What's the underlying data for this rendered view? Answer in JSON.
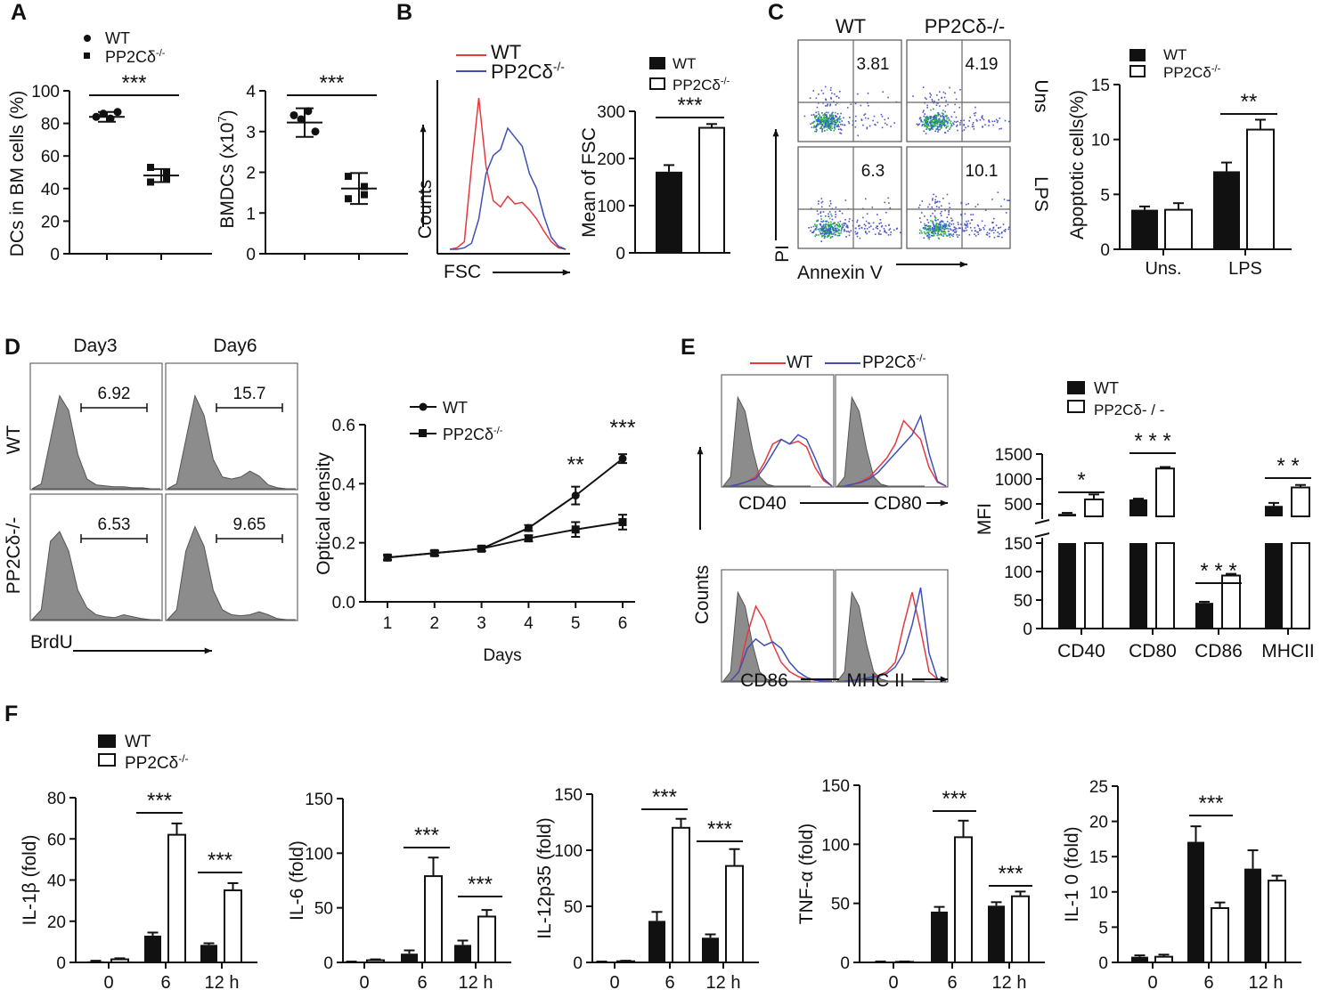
{
  "legend": {
    "wt": "WT",
    "ko": "PP2Cδ",
    "ko_sup": "-/-"
  },
  "colors": {
    "wt_line": "#e8383d",
    "ko_line": "#3f4fb5",
    "bar": "#000000",
    "shade": "#8c8c8c"
  },
  "panels": {
    "A": {
      "label": "A",
      "dcs": {
        "ylabel": "DCs in BM cells (%)",
        "yticks": [
          0,
          20,
          40,
          60,
          80,
          100
        ],
        "ylim": [
          0,
          100
        ],
        "wt_points": [
          84,
          86,
          83,
          87
        ],
        "ko_points": [
          44,
          50,
          53,
          46
        ],
        "wt_mean": 84,
        "wt_sd": 3,
        "ko_mean": 48,
        "ko_sd": 4,
        "sig": "***"
      },
      "bmdcs": {
        "ylabel": "BMDCs (x10",
        "ylabel_sup": "7",
        "ylabel_end": ")",
        "yticks": [
          0,
          1,
          2,
          3,
          4
        ],
        "ylim": [
          0,
          4
        ],
        "wt_points": [
          3.4,
          3.3,
          3.5,
          3.0
        ],
        "ko_points": [
          1.9,
          1.65,
          1.35,
          1.45
        ],
        "wt_mean": 3.22,
        "wt_sd": 0.35,
        "ko_mean": 1.6,
        "ko_sd": 0.38,
        "sig": "***"
      }
    },
    "B": {
      "label": "B",
      "hist_xlabel": "FSC",
      "hist_ylabel": "Counts",
      "bar": {
        "ylabel": "Mean of FSC",
        "yticks": [
          0,
          100,
          200,
          300
        ],
        "ylim": [
          0,
          300
        ],
        "wt": 172,
        "wt_err": 14,
        "ko": 265,
        "ko_err": 8,
        "sig": "***"
      }
    },
    "C": {
      "label": "C",
      "col_wt": "WT",
      "col_ko": "PP2Cδ-/-",
      "row1": "Uns",
      "row2": "LPS",
      "xlabel": "Annexin V",
      "ylabel": "PI",
      "q": [
        "3.81",
        "4.19",
        "6.3",
        "10.1"
      ],
      "bar": {
        "ylabel": "Apoptotic cells(%)",
        "yticks": [
          0,
          5,
          10,
          15
        ],
        "ylim": [
          0,
          15
        ],
        "categories": [
          "Uns.",
          "LPS"
        ],
        "wt": [
          3.6,
          7.1
        ],
        "wt_err": [
          0.3,
          0.8
        ],
        "ko": [
          3.6,
          10.9
        ],
        "ko_err": [
          0.6,
          0.9
        ],
        "sig": "**"
      }
    },
    "D": {
      "label": "D",
      "col1": "Day3",
      "col2": "Day6",
      "row1": "WT",
      "row2": "PP2Cδ-/-",
      "xlabel": "BrdU",
      "gates": [
        "6.92",
        "15.7",
        "6.53",
        "9.65"
      ]
    },
    "E": {
      "label": "E",
      "hist_ylabel": "Counts",
      "markers": [
        "CD40",
        "CD80",
        "CD86",
        "MHC II"
      ],
      "bar": {
        "ylabel": "MFI",
        "categories": [
          "CD40",
          "CD80",
          "CD86",
          "MHCII"
        ],
        "upper_ticks": [
          500,
          1000,
          1500
        ],
        "lower_ticks": [
          0,
          50,
          100,
          150
        ],
        "wt": [
          300,
          590,
          45,
          460
        ],
        "wt_err": [
          20,
          15,
          2,
          60
        ],
        "ko": [
          590,
          1210,
          93,
          830
        ],
        "ko_err": [
          100,
          30,
          3,
          50
        ],
        "sig": [
          "*",
          "* * *",
          "* * *",
          "* *"
        ],
        "legend_ko": "PP2Cδ- / -"
      }
    },
    "F": {
      "label": "F",
      "unit": "h",
      "categories": [
        "0",
        "6",
        "12 h"
      ]
    }
  },
  "chart_data": [
    {
      "type": "scatter",
      "title": "DCs in BM cells",
      "ylabel": "DCs in BM cells (%)",
      "ylim": [
        0,
        100
      ],
      "series": [
        {
          "name": "WT",
          "values": [
            84,
            86,
            83,
            87
          ]
        },
        {
          "name": "PP2Cδ-/-",
          "values": [
            44,
            50,
            53,
            46
          ]
        }
      ]
    },
    {
      "type": "scatter",
      "title": "BMDCs",
      "ylabel": "BMDCs (x10^7)",
      "ylim": [
        0,
        4
      ],
      "series": [
        {
          "name": "WT",
          "values": [
            3.4,
            3.3,
            3.5,
            3.0
          ]
        },
        {
          "name": "PP2Cδ-/-",
          "values": [
            1.9,
            1.65,
            1.35,
            1.45
          ]
        }
      ]
    },
    {
      "type": "bar",
      "ylabel": "Mean of FSC",
      "ylim": [
        0,
        300
      ],
      "categories": [
        "WT",
        "PP2Cδ-/-"
      ],
      "values": [
        172,
        265
      ]
    },
    {
      "type": "bar",
      "ylabel": "Apoptotic cells(%)",
      "ylim": [
        0,
        15
      ],
      "categories": [
        "Uns.",
        "LPS"
      ],
      "series": [
        {
          "name": "WT",
          "values": [
            3.6,
            7.1
          ]
        },
        {
          "name": "PP2Cδ-/-",
          "values": [
            3.6,
            10.9
          ]
        }
      ]
    },
    {
      "type": "line",
      "xlabel": "Days",
      "ylabel": "Optical density",
      "ylim": [
        0,
        0.6
      ],
      "x": [
        1,
        2,
        3,
        4,
        5,
        6
      ],
      "xticks": [
        1,
        2,
        3,
        4,
        5,
        6
      ],
      "yticks": [
        0.0,
        0.2,
        0.4,
        0.6
      ],
      "series": [
        {
          "name": "WT",
          "values": [
            0.15,
            0.165,
            0.18,
            0.25,
            0.36,
            0.485
          ],
          "err": [
            0.008,
            0.008,
            0.008,
            0.01,
            0.03,
            0.015
          ]
        },
        {
          "name": "PP2Cδ-/-",
          "values": [
            0.15,
            0.165,
            0.18,
            0.215,
            0.245,
            0.27
          ],
          "err": [
            0.008,
            0.008,
            0.008,
            0.01,
            0.025,
            0.025
          ]
        }
      ],
      "annotations": [
        {
          "x": 5,
          "text": "**"
        },
        {
          "x": 6,
          "text": "***"
        }
      ]
    },
    {
      "type": "bar",
      "ylabel": "MFI",
      "categories": [
        "CD40",
        "CD80",
        "CD86",
        "MHCII"
      ],
      "series": [
        {
          "name": "WT",
          "values": [
            300,
            590,
            45,
            460
          ]
        },
        {
          "name": "PP2Cδ-/-",
          "values": [
            590,
            1210,
            93,
            830
          ]
        }
      ]
    },
    {
      "type": "bar",
      "ylabel": "IL-1β (fold)",
      "ylim": [
        0,
        80
      ],
      "yticks": [
        0,
        20,
        40,
        60,
        80
      ],
      "categories": [
        "0",
        "6",
        "12 h"
      ],
      "series": [
        {
          "name": "WT",
          "values": [
            0.5,
            13,
            8.5
          ],
          "err": [
            0.3,
            1.5,
            0.8
          ]
        },
        {
          "name": "PP2Cδ-/-",
          "values": [
            1.5,
            62,
            35
          ],
          "err": [
            0.5,
            5.5,
            3.5
          ]
        }
      ],
      "sig": [
        {
          "pair": 1,
          "text": "***"
        },
        {
          "pair": 2,
          "text": "***"
        }
      ]
    },
    {
      "type": "bar",
      "ylabel": "IL-6 (fold)",
      "ylim": [
        0,
        150
      ],
      "yticks": [
        0,
        50,
        100,
        150
      ],
      "categories": [
        "0",
        "6",
        "12 h"
      ],
      "series": [
        {
          "name": "WT",
          "values": [
            0.5,
            8,
            16
          ],
          "err": [
            0.3,
            3,
            4
          ]
        },
        {
          "name": "PP2Cδ-/-",
          "values": [
            2,
            79,
            42
          ],
          "err": [
            0.8,
            17,
            6
          ]
        }
      ],
      "sig": [
        {
          "pair": 1,
          "text": "***"
        },
        {
          "pair": 2,
          "text": "***"
        }
      ]
    },
    {
      "type": "bar",
      "ylabel": "IL-12p35 (fold)",
      "ylim": [
        0,
        150
      ],
      "yticks": [
        0,
        50,
        100,
        150
      ],
      "categories": [
        "0",
        "6",
        "12 h"
      ],
      "series": [
        {
          "name": "WT",
          "values": [
            0.5,
            37,
            22
          ],
          "err": [
            0.3,
            8,
            3
          ]
        },
        {
          "name": "PP2Cδ-/-",
          "values": [
            1,
            120,
            86
          ],
          "err": [
            0.5,
            8,
            15
          ]
        }
      ],
      "sig": [
        {
          "pair": 1,
          "text": "***"
        },
        {
          "pair": 2,
          "text": "***"
        }
      ]
    },
    {
      "type": "bar",
      "ylabel": "TNF-α (fold)",
      "ylim": [
        0,
        150
      ],
      "yticks": [
        0,
        50,
        100,
        150
      ],
      "categories": [
        "0",
        "6",
        "12 h"
      ],
      "series": [
        {
          "name": "WT",
          "values": [
            0.5,
            43,
            48
          ],
          "err": [
            0.3,
            4,
            3
          ]
        },
        {
          "name": "PP2Cδ-/-",
          "values": [
            0.5,
            106,
            56
          ],
          "err": [
            0.3,
            14,
            4
          ]
        }
      ],
      "sig": [
        {
          "pair": 1,
          "text": "***"
        },
        {
          "pair": 2,
          "text": "***"
        }
      ]
    },
    {
      "type": "bar",
      "ylabel": "IL-1 0  (fold)",
      "ylim": [
        0,
        25
      ],
      "yticks": [
        0,
        5,
        10,
        15,
        20,
        25
      ],
      "categories": [
        "0",
        "6",
        "12 h"
      ],
      "series": [
        {
          "name": "WT",
          "values": [
            0.8,
            17.1,
            13.3
          ],
          "err": [
            0.2,
            2.2,
            2.6
          ]
        },
        {
          "name": "PP2Cδ-/-",
          "values": [
            0.8,
            7.7,
            11.6
          ],
          "err": [
            0.3,
            0.8,
            0.7
          ]
        }
      ],
      "sig": [
        {
          "pair": 1,
          "text": "***"
        }
      ]
    }
  ]
}
